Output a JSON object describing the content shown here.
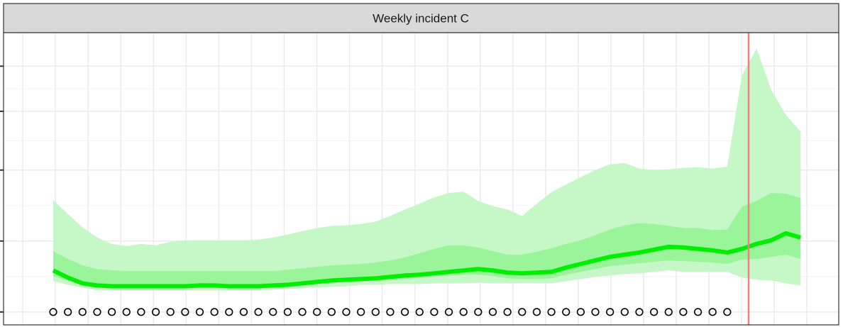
{
  "chart_data": {
    "type": "ribbon_line",
    "title": "Weekly incident C",
    "x": [
      1,
      2,
      3,
      4,
      5,
      6,
      7,
      8,
      9,
      10,
      11,
      12,
      13,
      14,
      15,
      16,
      17,
      18,
      19,
      20,
      21,
      22,
      23,
      24,
      25,
      26,
      27,
      28,
      29,
      30,
      31,
      32,
      33,
      34,
      35,
      36,
      37,
      38,
      39,
      40,
      41,
      42,
      43,
      44,
      45,
      46,
      47,
      48,
      49,
      50,
      51,
      52
    ],
    "xlim": [
      -2.39,
      54.61
    ],
    "xticks": [
      -1.08,
      1.15,
      3.38,
      5.61,
      7.84,
      10.07,
      12.3,
      14.53,
      16.76,
      18.99,
      21.22,
      23.45,
      25.68,
      27.91,
      30.14,
      32.37,
      34.6,
      36.83,
      39.06,
      41.29,
      43.52,
      45.75,
      47.98,
      50.21,
      52.44
    ],
    "ylim": [
      -0.33,
      155
    ],
    "yticks": [
      0,
      10,
      40,
      80,
      120
    ],
    "y_scale": "sqrt",
    "grid": true,
    "bands": [
      {
        "color": "#c6f7c6",
        "lower": [
          1.89,
          1.47,
          1.18,
          0.92,
          0.92,
          0.92,
          0.92,
          0.92,
          0.92,
          0.92,
          0.92,
          0.92,
          0.92,
          0.92,
          0.92,
          0.98,
          1.04,
          1.11,
          1.18,
          1.25,
          1.32,
          1.47,
          1.47,
          1.55,
          1.55,
          1.55,
          1.63,
          1.63,
          1.63,
          1.71,
          1.63,
          1.63,
          1.63,
          1.63,
          1.63,
          1.89,
          2.16,
          2.45,
          2.65,
          2.87,
          2.97,
          3.2,
          3.43,
          3.2,
          3.2,
          3.2,
          3.2,
          2.35,
          2.07,
          1.97,
          1.63,
          1.4
        ],
        "upper": [
          24.8,
          19.1,
          14.2,
          11.0,
          9.21,
          8.63,
          9.21,
          8.82,
          9.8,
          10.2,
          10.2,
          10.2,
          10.2,
          10.2,
          10.4,
          11.0,
          11.9,
          13.0,
          14.0,
          14.7,
          14.9,
          15.4,
          16.2,
          18.3,
          20.9,
          23.3,
          26.1,
          28.1,
          28.8,
          24.5,
          22.3,
          20.9,
          18.3,
          23.3,
          28.5,
          32.3,
          36.1,
          40.0,
          43.3,
          44.1,
          40.8,
          40.0,
          40.4,
          41.2,
          41.6,
          40.8,
          42.0,
          111,
          138,
          98.0,
          77.1,
          64.8
        ]
      },
      {
        "color": "#8ef28e",
        "lower": [
          2.55,
          1.97,
          1.55,
          1.4,
          1.4,
          1.4,
          1.4,
          1.4,
          1.4,
          1.4,
          1.4,
          1.4,
          1.4,
          1.4,
          1.4,
          1.4,
          1.47,
          1.55,
          1.63,
          1.71,
          1.8,
          1.89,
          1.97,
          2.07,
          2.25,
          2.35,
          2.55,
          2.65,
          2.76,
          2.76,
          2.55,
          2.25,
          2.16,
          2.16,
          2.25,
          2.76,
          3.2,
          3.67,
          4.18,
          4.44,
          4.72,
          5.0,
          5.29,
          5.14,
          5.0,
          4.86,
          4.58,
          5.44,
          5.59,
          6.05,
          6.53,
          5.59
        ],
        "upper": [
          7.37,
          5.59,
          4.31,
          3.67,
          3.43,
          3.31,
          3.31,
          3.31,
          3.31,
          3.31,
          3.31,
          3.31,
          3.31,
          3.31,
          3.31,
          3.31,
          3.55,
          3.8,
          4.05,
          4.31,
          4.44,
          4.58,
          4.86,
          5.29,
          5.89,
          6.86,
          7.9,
          8.82,
          8.82,
          8.26,
          7.37,
          6.53,
          6.53,
          7.2,
          8.08,
          9.21,
          10.2,
          11.7,
          13.5,
          14.9,
          15.7,
          15.4,
          14.7,
          14.0,
          14.0,
          13.3,
          13.5,
          22.0,
          24.5,
          28.1,
          27.8,
          25.8
        ]
      }
    ],
    "series": [
      {
        "color": "#00ee00",
        "values": [
          3.43,
          2.35,
          1.63,
          1.4,
          1.32,
          1.32,
          1.32,
          1.32,
          1.32,
          1.32,
          1.4,
          1.4,
          1.32,
          1.32,
          1.32,
          1.4,
          1.47,
          1.63,
          1.8,
          1.97,
          2.07,
          2.16,
          2.25,
          2.45,
          2.65,
          2.76,
          2.97,
          3.2,
          3.43,
          3.67,
          3.43,
          3.09,
          2.97,
          3.09,
          3.2,
          3.92,
          4.58,
          5.29,
          6.05,
          6.53,
          7.03,
          7.72,
          8.45,
          8.26,
          7.9,
          7.55,
          7.03,
          7.9,
          9.21,
          10.2,
          12.3,
          11.0
        ]
      }
    ],
    "observed": {
      "color": "#000000",
      "x": [
        1,
        2,
        3,
        4,
        5,
        6,
        7,
        8,
        9,
        10,
        11,
        12,
        13,
        14,
        15,
        16,
        17,
        18,
        19,
        20,
        21,
        22,
        23,
        24,
        25,
        26,
        27,
        28,
        29,
        30,
        31,
        32,
        33,
        34,
        35,
        36,
        37,
        38,
        39,
        40,
        41,
        42,
        43,
        44,
        45,
        46,
        47
      ],
      "values": [
        0,
        0,
        0,
        0,
        0,
        0,
        0,
        0,
        0,
        0,
        0,
        0,
        0,
        0,
        0,
        0,
        0,
        0,
        0,
        0,
        0,
        0,
        0,
        0,
        0,
        0,
        0,
        0,
        0,
        0,
        0,
        0,
        0,
        0,
        0,
        0,
        0,
        0,
        0,
        0,
        0,
        0,
        0,
        0,
        0,
        0,
        0
      ]
    },
    "vline": {
      "x": 48.46,
      "color": "#f08080"
    }
  }
}
